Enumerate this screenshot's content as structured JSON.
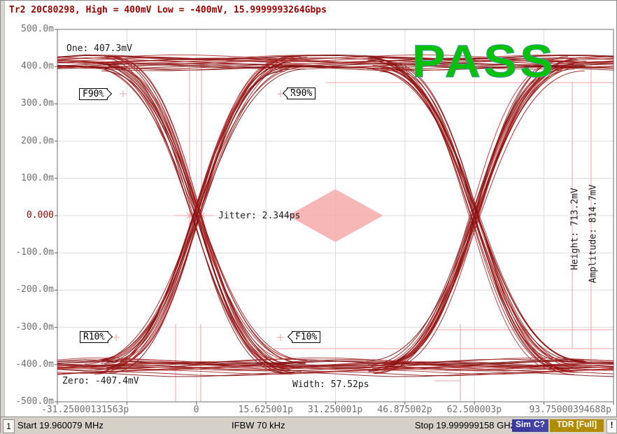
{
  "header": {
    "trace_title": "Tr2 20C80298, High = 400mV Low = -400mV, 15.9999993264Gbps"
  },
  "chart_data": {
    "type": "line",
    "subtype": "eye-diagram",
    "title": "Tr2 20C80298, High = 400mV Low = -400mV, 15.9999993264Gbps",
    "result": "PASS",
    "x_axis": {
      "unit": "ps",
      "min_ps": -31.25,
      "max_ps": 93.75,
      "tick_step_ps": 15.625,
      "labels": [
        {
          "text": "-31.25000131563p",
          "ps": -31.25
        },
        {
          "text": "0",
          "ps": 0
        },
        {
          "text": "15.625001p",
          "ps": 15.625
        },
        {
          "text": "31.250001p",
          "ps": 31.25
        },
        {
          "text": "46.875002p",
          "ps": 46.875
        },
        {
          "text": "62.500003p",
          "ps": 62.5
        },
        {
          "text": "93.75000394688p",
          "ps": 93.75
        }
      ]
    },
    "y_axis": {
      "unit": "V",
      "min_mv": -500,
      "max_mv": 500,
      "tick_step_mv": 100,
      "labels": [
        {
          "text": "500.0m",
          "mv": 500
        },
        {
          "text": "400.0m",
          "mv": 400
        },
        {
          "text": "300.0m",
          "mv": 300
        },
        {
          "text": "200.0m",
          "mv": 200
        },
        {
          "text": "100.0m",
          "mv": 100
        },
        {
          "text": "0.000",
          "mv": 0,
          "emphasis": true
        },
        {
          "text": "-100.0m",
          "mv": -100
        },
        {
          "text": "-200.0m",
          "mv": -200
        },
        {
          "text": "-300.0m",
          "mv": -300
        },
        {
          "text": "-400.0m",
          "mv": -400
        },
        {
          "text": "-500.0m",
          "mv": -500
        }
      ]
    },
    "eye": {
      "bit_rate": "15.9999993264Gbps",
      "high_threshold_mv": 400,
      "low_threshold_mv": -400,
      "one_level_mv": 407.3,
      "zero_level_mv": -407.4,
      "unit_interval_ps": 62.5,
      "crossing_times_ps": [
        0,
        62.5
      ]
    },
    "mask": {
      "shape": "diamond",
      "center_ps": 31.25,
      "center_mv": 0,
      "half_width_ps": 10.7,
      "half_height_mv": 71
    },
    "measurements": {
      "one": "One: 407.3mV",
      "zero": "Zero: -407.4mV",
      "jitter": "Jitter: 2.344ps",
      "width": "Width: 57.52ps",
      "height": "Height: 713.2mV",
      "amplitude": "Amplitude: 814.7mV"
    },
    "flags": {
      "f90": "F90%",
      "r90": "R90%",
      "r10": "R10%",
      "f10": "F10%"
    },
    "colors": {
      "trace": "#9a1515",
      "trace_dark": "#7d0d0d",
      "trace_light": "#ad2c2c",
      "grid": "#dcdcdc",
      "border": "#6e6e6e",
      "mask": "#f6aaaa",
      "marker": "#f2a2a2",
      "pass": "#00c300",
      "title_red": "#9b0000",
      "axis_label": "#6f6f6f"
    }
  },
  "status_bar": {
    "channel": "1",
    "start": "Start 19.960079 MHz",
    "ifbw": "IFBW 70 kHz",
    "stop": "Stop 19.999999158 GHz",
    "badges": [
      {
        "label": "Sim",
        "bg": "#3b3b9d"
      },
      {
        "label": "C?",
        "bg": "#4444a6"
      },
      {
        "label": "TDR [Full]",
        "bg": "#b18c00"
      }
    ],
    "alert": "!"
  }
}
